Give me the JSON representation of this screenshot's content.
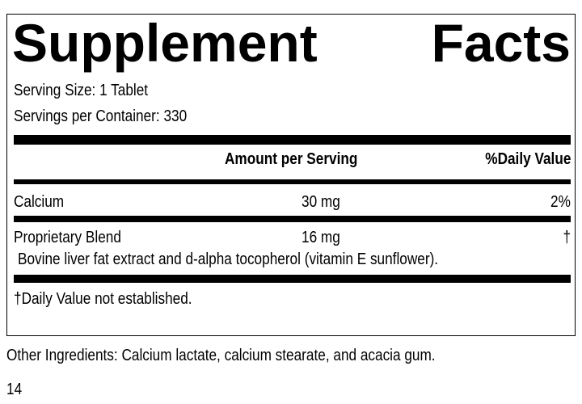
{
  "label": {
    "title_word1": "Supplement",
    "title_word2": "Facts",
    "serving_size": "Serving Size: 1 Tablet",
    "servings_per_container": "Servings per Container: 330",
    "header": {
      "amount": "Amount per Serving",
      "daily_value": "%Daily Value"
    },
    "rows": [
      {
        "name": "Calcium",
        "amount": "30 mg",
        "dv": "2%"
      },
      {
        "name": "Proprietary Blend",
        "amount": "16 mg",
        "dv": "†",
        "description": "Bovine liver fat extract and d-alpha tocopherol (vitamin E sunflower)."
      }
    ],
    "footnote": "†Daily Value not established."
  },
  "other_ingredients": "Other Ingredients: Calcium lactate, calcium stearate, and acacia gum.",
  "page_number": "14"
}
